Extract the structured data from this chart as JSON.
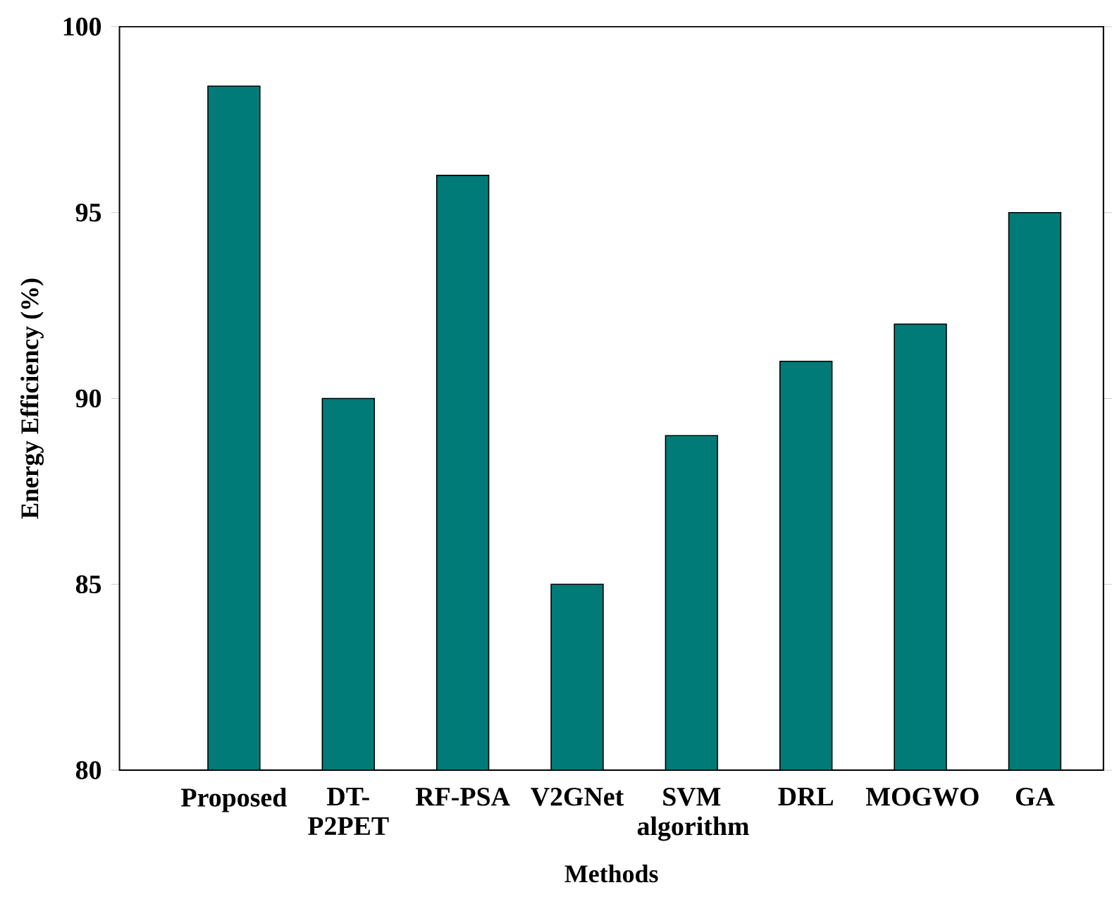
{
  "chart_data": {
    "type": "bar",
    "xlabel": "Methods",
    "ylabel": "Energy Efficiency (%)",
    "categories": [
      "Proposed",
      "DT-P2PET",
      "RF-PSA",
      "V2GNet",
      "SVM algorithm",
      "DRL",
      "MOGWO",
      "GA"
    ],
    "values": [
      98.4,
      90,
      96,
      85,
      89,
      91,
      92,
      95
    ],
    "color": "#007b78",
    "ylim": [
      80,
      100
    ],
    "yticks": [
      80,
      85,
      90,
      95,
      100
    ]
  }
}
